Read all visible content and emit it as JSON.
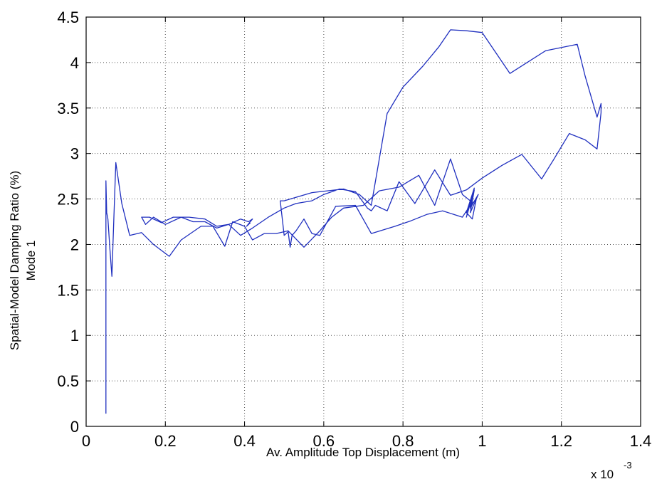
{
  "chart_data": {
    "type": "line",
    "title": "",
    "xlabel": "Av. Amplitude Top Displacement (m)",
    "ylabel_line1": "Spatial-Model Damping Ratio (%)",
    "ylabel_line2": "Mode 1",
    "x_exponent_base": "x 10",
    "x_exponent_power": "-3",
    "xlim": [
      0,
      1.4
    ],
    "ylim": [
      0,
      4.5
    ],
    "xticks": [
      "0",
      "0.2",
      "0.4",
      "0.6",
      "0.8",
      "1",
      "1.2",
      "1.4"
    ],
    "yticks": [
      "0",
      "0.5",
      "1",
      "1.5",
      "2",
      "2.5",
      "3",
      "3.5",
      "4",
      "4.5"
    ],
    "grid": true,
    "line_color": "#1f2fbf",
    "series": [
      {
        "x": [
          0.05,
          0.05,
          0.05,
          0.05,
          0.05,
          0.05,
          0.05,
          0.052,
          0.055,
          0.06,
          0.065,
          0.07,
          0.075,
          0.09,
          0.11,
          0.14,
          0.17,
          0.21,
          0.24,
          0.29,
          0.32,
          0.35,
          0.37,
          0.4,
          0.42,
          0.45,
          0.48,
          0.51,
          0.55,
          0.59,
          0.62,
          0.65,
          0.7,
          0.74,
          0.79,
          0.84,
          0.88,
          0.92,
          0.95,
          0.97,
          0.96,
          0.98,
          0.97,
          0.99,
          0.97,
          0.98,
          0.96,
          0.975,
          0.985,
          0.965,
          0.95,
          0.9,
          0.86,
          0.82,
          0.78,
          0.72,
          0.68,
          0.63,
          0.59,
          0.57,
          0.55,
          0.53,
          0.52,
          0.515,
          0.51,
          0.5,
          0.49,
          0.5,
          0.57,
          0.65,
          0.69,
          0.72,
          0.76,
          0.8,
          0.85,
          0.89,
          0.92,
          0.96,
          1.0,
          1.07,
          1.16,
          1.24,
          1.26,
          1.29,
          1.3,
          1.3,
          1.29,
          1.26,
          1.22,
          1.18,
          1.15,
          1.1,
          1.05,
          1.0,
          0.96,
          0.92,
          0.88,
          0.83,
          0.79,
          0.76,
          0.73,
          0.72,
          0.71,
          0.68,
          0.64,
          0.6,
          0.57,
          0.53,
          0.5,
          0.46,
          0.42,
          0.39,
          0.36,
          0.33,
          0.3,
          0.27,
          0.24,
          0.2,
          0.17,
          0.15,
          0.14,
          0.16,
          0.19,
          0.22,
          0.26,
          0.3,
          0.33,
          0.36,
          0.39,
          0.41,
          0.42,
          0.405,
          0.415
        ],
        "y": [
          0.14,
          0.6,
          1.0,
          2.45,
          2.6,
          2.42,
          2.7,
          2.35,
          2.28,
          1.95,
          1.65,
          2.3,
          2.9,
          2.45,
          2.1,
          2.13,
          2.0,
          1.87,
          2.05,
          2.2,
          2.2,
          1.98,
          2.25,
          2.2,
          2.05,
          2.12,
          2.12,
          2.15,
          1.97,
          2.15,
          2.3,
          2.4,
          2.43,
          2.59,
          2.63,
          2.76,
          2.43,
          2.94,
          2.55,
          2.48,
          2.3,
          2.6,
          2.35,
          2.55,
          2.4,
          2.62,
          2.35,
          2.28,
          2.5,
          2.4,
          2.3,
          2.37,
          2.33,
          2.26,
          2.2,
          2.12,
          2.43,
          2.42,
          2.1,
          2.12,
          2.28,
          2.15,
          2.1,
          1.97,
          2.14,
          2.1,
          2.48,
          2.48,
          2.57,
          2.61,
          2.55,
          2.43,
          3.44,
          3.73,
          3.96,
          4.17,
          4.36,
          4.35,
          4.33,
          3.88,
          4.13,
          4.2,
          3.85,
          3.4,
          3.55,
          3.45,
          3.05,
          3.15,
          3.22,
          2.93,
          2.72,
          2.99,
          2.87,
          2.73,
          2.6,
          2.54,
          2.82,
          2.45,
          2.69,
          2.37,
          2.43,
          2.37,
          2.4,
          2.58,
          2.61,
          2.55,
          2.48,
          2.45,
          2.4,
          2.3,
          2.18,
          2.1,
          2.22,
          2.18,
          2.25,
          2.25,
          2.3,
          2.22,
          2.3,
          2.22,
          2.3,
          2.3,
          2.24,
          2.3,
          2.3,
          2.28,
          2.2,
          2.22,
          2.28,
          2.25,
          2.28,
          2.2,
          2.24
        ]
      }
    ]
  }
}
